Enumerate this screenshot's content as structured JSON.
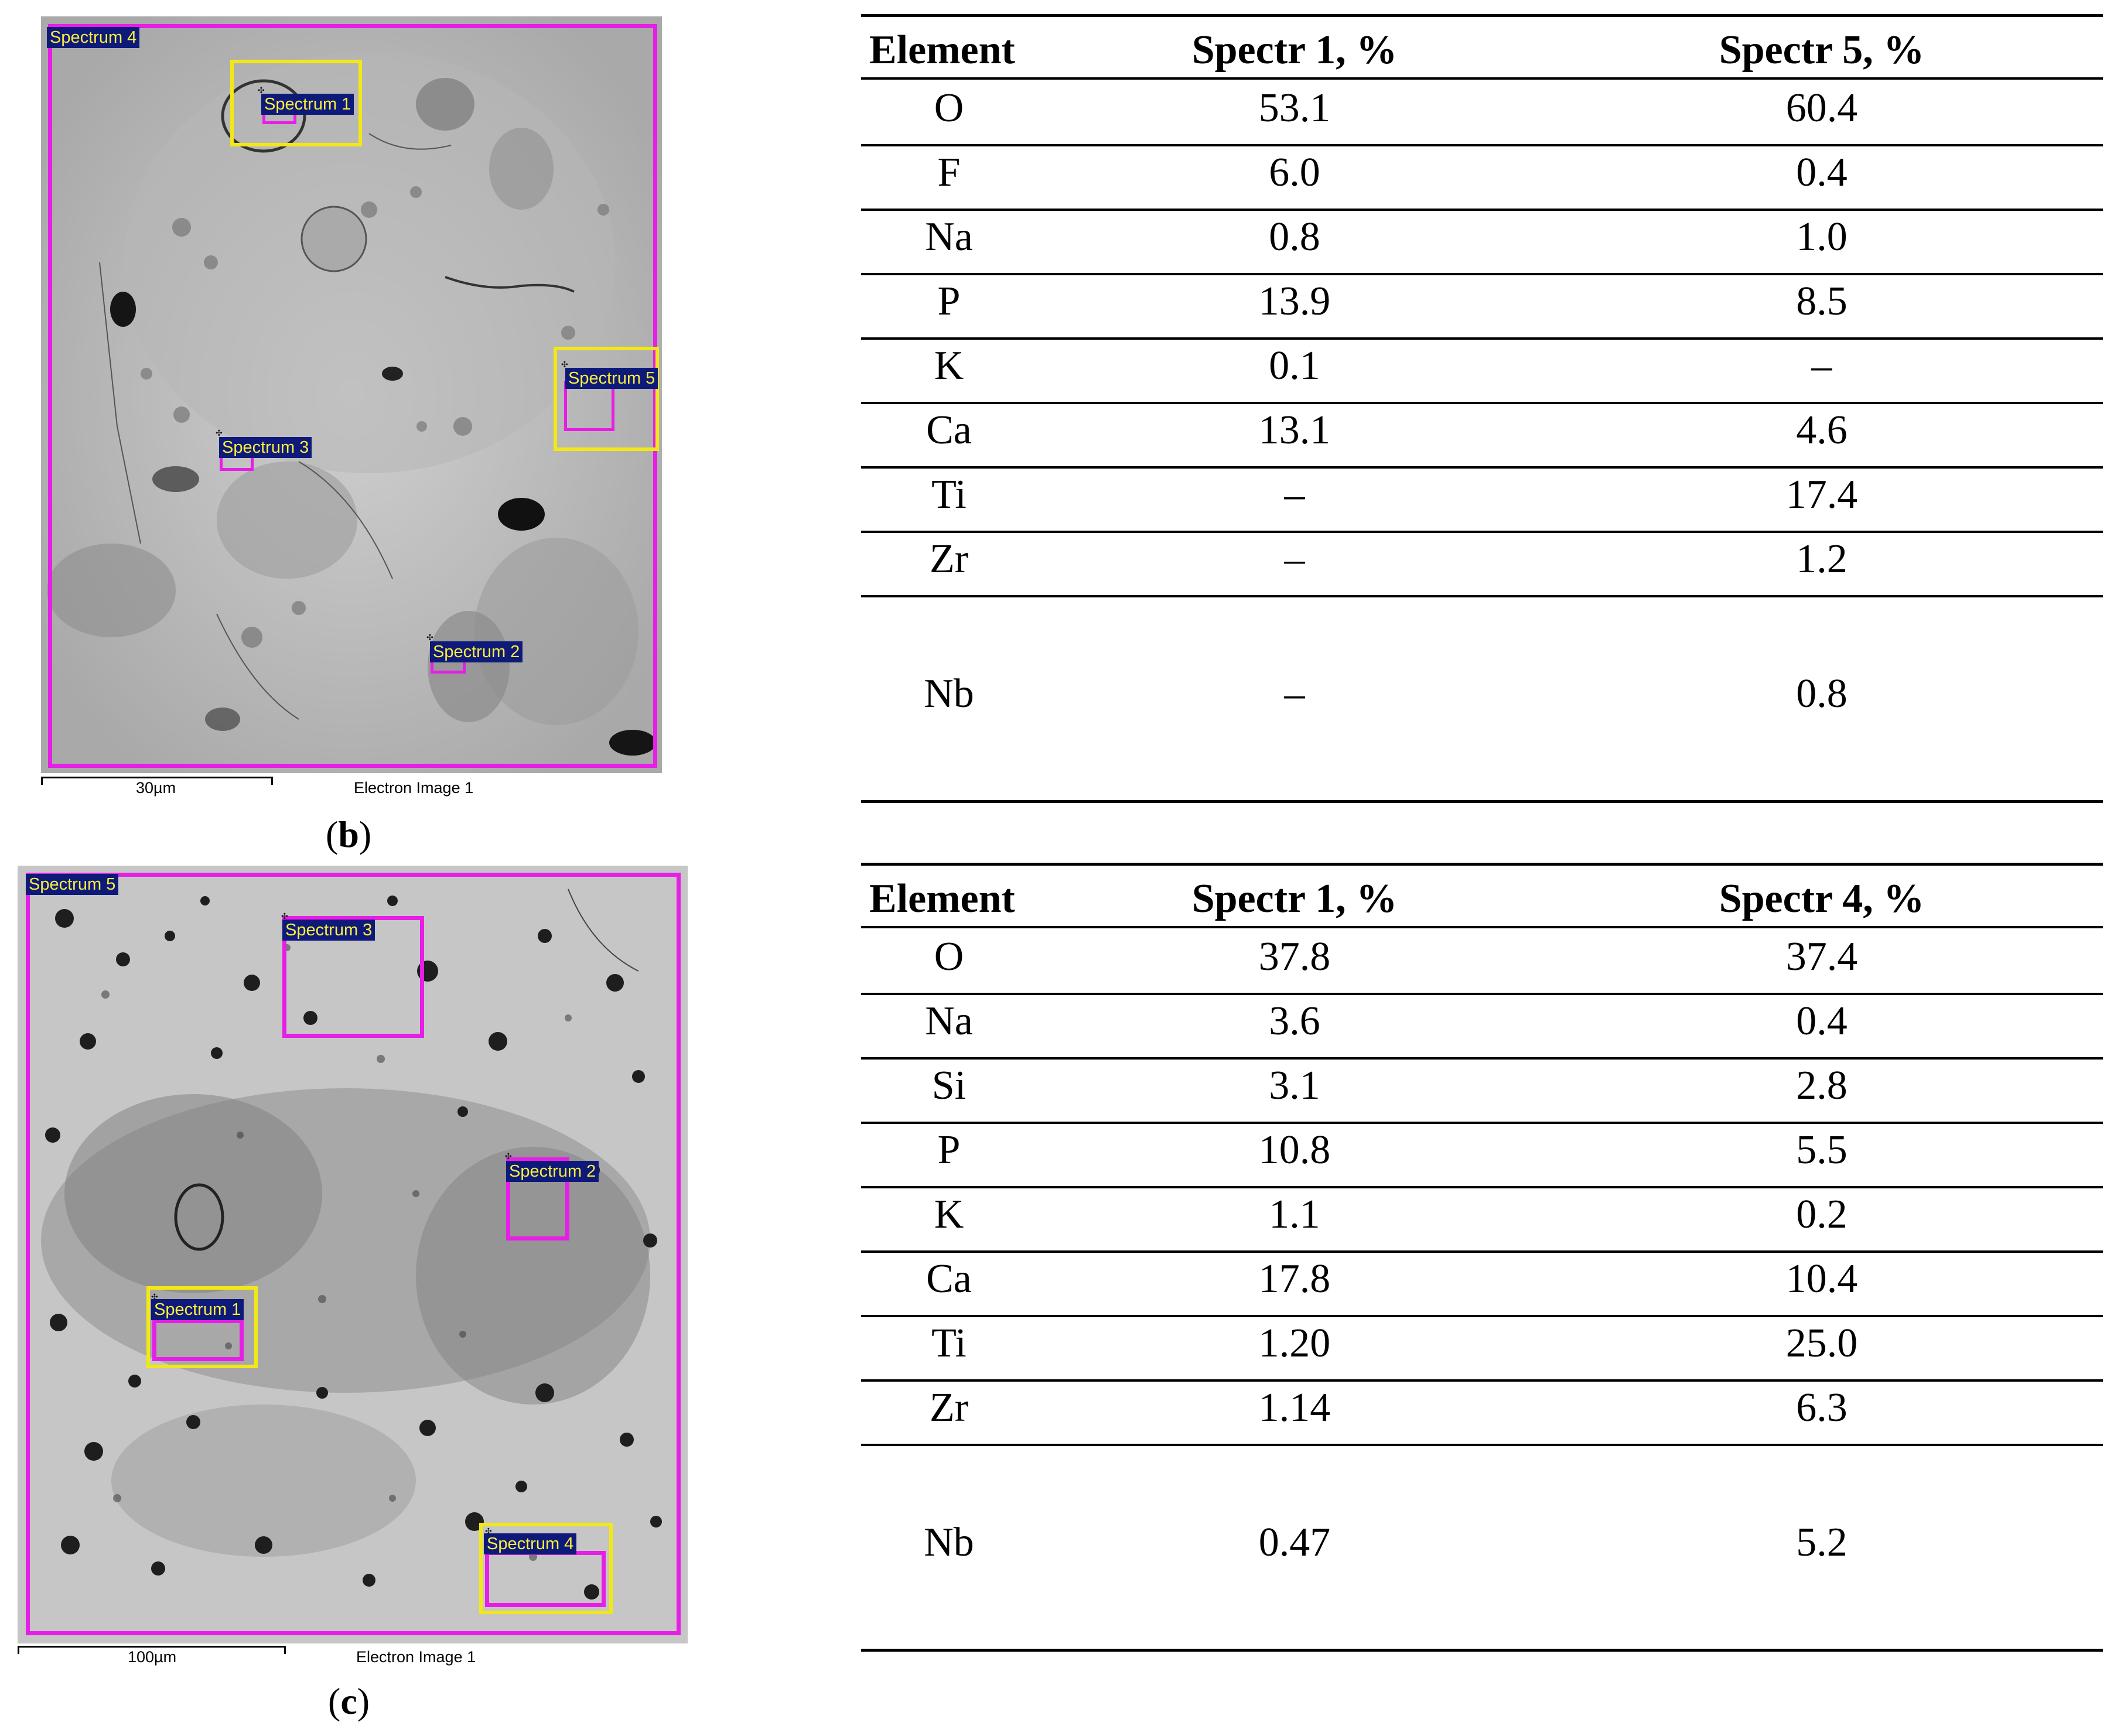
{
  "panels": [
    {
      "label_open": "(",
      "label_letter": "b",
      "label_close": ")",
      "scale_label": "30µm",
      "caption": "Electron Image 1",
      "spectrum_tags": [
        "Spectrum 4",
        "Spectrum 1",
        "Spectrum 5",
        "Spectrum 3",
        "Spectrum 2"
      ]
    },
    {
      "label_open": "(",
      "label_letter": "c",
      "label_close": ")",
      "scale_label": "100µm",
      "caption": "Electron Image 1",
      "spectrum_tags": [
        "Spectrum 5",
        "Spectrum 3",
        "Spectrum 2",
        "Spectrum 1",
        "Spectrum 4"
      ]
    }
  ],
  "tables": [
    {
      "headers": [
        "Element",
        "Spectr 1, %",
        "Spectr 5, %"
      ],
      "rows": [
        [
          "O",
          "53.1",
          "60.4"
        ],
        [
          "F",
          "6.0",
          "0.4"
        ],
        [
          "Na",
          "0.8",
          "1.0"
        ],
        [
          "P",
          "13.9",
          "8.5"
        ],
        [
          "K",
          "0.1",
          "–"
        ],
        [
          "Ca",
          "13.1",
          "4.6"
        ],
        [
          "Ti",
          "–",
          "17.4"
        ],
        [
          "Zr",
          "–",
          "1.2"
        ],
        [
          "Nb",
          "–",
          "0.8"
        ]
      ]
    },
    {
      "headers": [
        "Element",
        "Spectr 1, %",
        "Spectr 4, %"
      ],
      "rows": [
        [
          "O",
          "37.8",
          "37.4"
        ],
        [
          "Na",
          "3.6",
          "0.4"
        ],
        [
          "Si",
          "3.1",
          "2.8"
        ],
        [
          "P",
          "10.8",
          "5.5"
        ],
        [
          "K",
          "1.1",
          "0.2"
        ],
        [
          "Ca",
          "17.8",
          "10.4"
        ],
        [
          "Ti",
          "1.20",
          "25.0"
        ],
        [
          "Zr",
          "1.14",
          "6.3"
        ],
        [
          "Nb",
          "0.47",
          "5.2"
        ]
      ]
    }
  ],
  "colors": {
    "roi_magenta": "#e61ee6",
    "roi_yellow": "#f2e816",
    "tag_background": "#0e1a7a",
    "tag_text": "#ffef3a"
  }
}
